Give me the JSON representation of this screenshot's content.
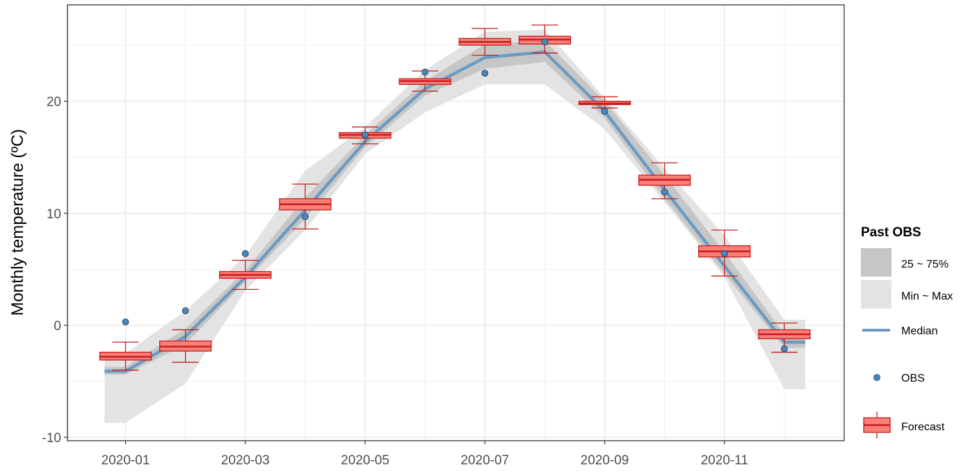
{
  "chart_data": {
    "type": "boxplot-forecast",
    "ylabel": "Monthly temperature (ºC)",
    "xlabel": "",
    "x_tick_labels": [
      "2020-01",
      "2020-03",
      "2020-05",
      "2020-07",
      "2020-09",
      "2020-11"
    ],
    "x_tick_months": [
      1,
      3,
      5,
      7,
      9,
      11
    ],
    "y_ticks": [
      -10,
      0,
      10,
      20
    ],
    "ylim": [
      -10.3,
      28.6
    ],
    "xlim": [
      0.03,
      13.0
    ],
    "months": [
      1,
      2,
      3,
      4,
      5,
      6,
      7,
      8,
      9,
      10,
      11,
      12
    ],
    "past_obs": {
      "min": [
        -8.7,
        -5.2,
        3.1,
        8.5,
        15.3,
        19.0,
        21.5,
        21.5,
        17.5,
        11.0,
        4.3,
        -5.7
      ],
      "q25": [
        -4.4,
        -1.7,
        3.9,
        9.5,
        15.9,
        20.5,
        22.9,
        23.5,
        18.5,
        11.3,
        4.6,
        -2.0
      ],
      "median": [
        -4.1,
        -1.0,
        4.3,
        10.3,
        16.4,
        21.1,
        23.9,
        24.4,
        19.1,
        12.1,
        5.3,
        -1.5
      ],
      "q75": [
        -3.7,
        -0.3,
        4.9,
        11.4,
        17.0,
        21.8,
        25.1,
        25.4,
        20.0,
        13.4,
        6.5,
        -0.8
      ],
      "max": [
        -2.5,
        1.3,
        6.2,
        13.8,
        17.7,
        22.8,
        26.2,
        26.4,
        20.3,
        14.0,
        8.0,
        0.5
      ]
    },
    "obs": [
      0.3,
      1.3,
      6.4,
      9.7,
      17.0,
      22.6,
      22.5,
      25.3,
      19.1,
      11.9,
      6.4,
      -2.1
    ],
    "forecast": {
      "lower_whisker": [
        -4.0,
        -3.3,
        3.2,
        8.6,
        16.2,
        20.9,
        24.1,
        24.3,
        19.4,
        11.3,
        4.4,
        -2.4
      ],
      "q1": [
        -3.1,
        -2.3,
        4.2,
        10.3,
        16.7,
        21.5,
        25.0,
        25.1,
        19.7,
        12.5,
        6.1,
        -1.2
      ],
      "median": [
        -2.8,
        -1.9,
        4.5,
        10.8,
        17.0,
        21.8,
        25.3,
        25.5,
        19.8,
        13.0,
        6.6,
        -0.8
      ],
      "q3": [
        -2.4,
        -1.4,
        4.8,
        11.3,
        17.2,
        22.0,
        25.6,
        25.8,
        20.0,
        13.4,
        7.1,
        -0.4
      ],
      "upper_whisker": [
        -1.5,
        -0.4,
        5.8,
        12.6,
        17.7,
        22.7,
        26.5,
        26.8,
        20.4,
        14.5,
        8.5,
        0.2
      ]
    },
    "legend": {
      "title": "Past OBS",
      "items": [
        "25 ~ 75%",
        "Min ~ Max",
        "Median",
        "OBS",
        "Forecast"
      ],
      "position": "right"
    },
    "colors": {
      "range_fill": "#e3e3e3",
      "iqr_fill": "#c6c6c6",
      "median_line": "#6b9bc3",
      "obs_point": "#4a86b8",
      "box_fill": "#f88079",
      "box_stroke": "#c81c1c",
      "grid": "#ebebeb"
    }
  }
}
